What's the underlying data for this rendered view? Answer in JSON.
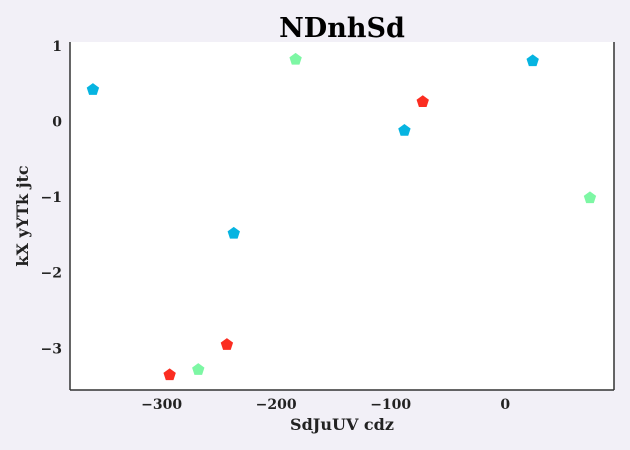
{
  "chart_data": {
    "type": "scatter",
    "title": "NDnhSd",
    "xlabel": "SdJuUV cdz",
    "ylabel": "kX yYTk jtc",
    "xlim": [
      -380,
      95
    ],
    "ylim": [
      -3.55,
      1.05
    ],
    "xticks": [
      -300,
      -200,
      -100,
      0
    ],
    "yticks": [
      1,
      0,
      -1,
      -2,
      -3
    ],
    "xtick_labels": [
      "−300",
      "−200",
      "−100",
      "0"
    ],
    "ytick_labels": [
      "1",
      "0",
      "−1",
      "−2",
      "−3"
    ],
    "grid": false,
    "legend": false,
    "marker": "pentagon",
    "series": [
      {
        "color": "#06b4e1",
        "points": [
          {
            "x": -360,
            "y": 0.42
          },
          {
            "x": -237,
            "y": -1.48
          },
          {
            "x": -88,
            "y": -0.12
          },
          {
            "x": 24,
            "y": 0.8
          }
        ]
      },
      {
        "color": "#fb2d21",
        "points": [
          {
            "x": -293,
            "y": -3.35
          },
          {
            "x": -243,
            "y": -2.95
          },
          {
            "x": -72,
            "y": 0.26
          }
        ]
      },
      {
        "color": "#7df7a4",
        "points": [
          {
            "x": -183,
            "y": 0.82
          },
          {
            "x": -268,
            "y": -3.28
          },
          {
            "x": 74,
            "y": -1.01
          }
        ]
      }
    ]
  }
}
